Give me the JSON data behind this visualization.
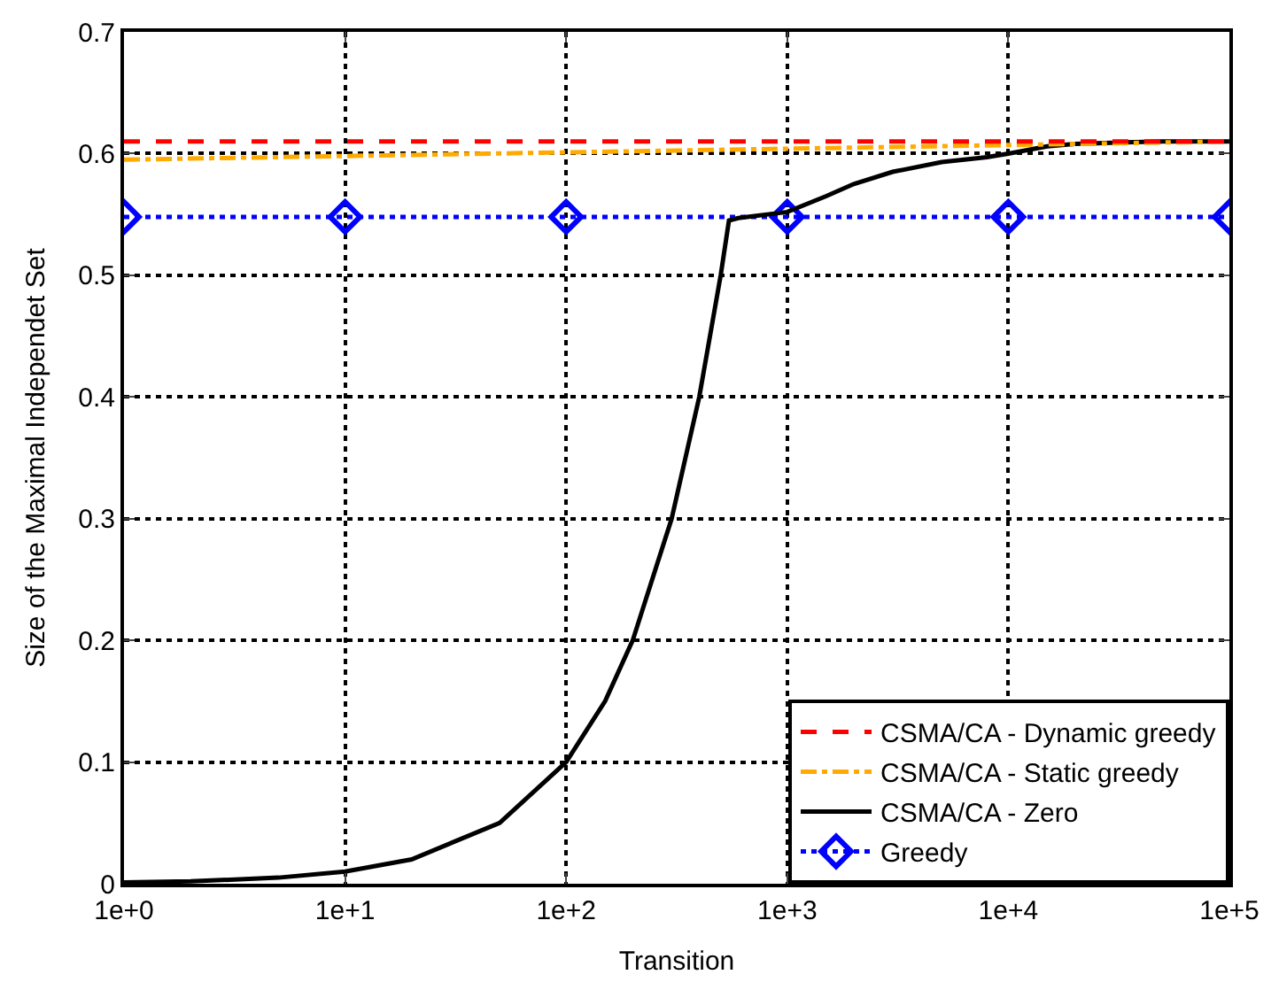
{
  "chart_data": {
    "type": "line",
    "xlabel": "Transition",
    "ylabel": "Size of the Maximal Independet Set",
    "log": "x",
    "grid": true,
    "legend": "bottom right",
    "xlim": [
      1,
      100000
    ],
    "xticks": [
      {
        "value": 1,
        "label": "1e+0"
      },
      {
        "value": 10,
        "label": "1e+1"
      },
      {
        "value": 100,
        "label": "1e+2"
      },
      {
        "value": 1000,
        "label": "1e+3"
      },
      {
        "value": 10000,
        "label": "1e+4"
      },
      {
        "value": 100000,
        "label": "1e+5"
      }
    ],
    "ylim": [
      0,
      0.7
    ],
    "yticks": [
      0,
      0.1,
      0.2,
      0.3,
      0.4,
      0.5,
      0.6,
      0.7
    ],
    "series": [
      {
        "name": "CSMA/CA - Dynamic greedy",
        "color": "#ff0000",
        "line_style": "dashed",
        "marker": "none",
        "x": [
          1,
          10,
          100,
          1000,
          10000,
          100000
        ],
        "values": [
          0.61,
          0.61,
          0.61,
          0.61,
          0.61,
          0.61
        ]
      },
      {
        "name": "CSMA/CA - Static greedy",
        "color": "#ffaa00",
        "line_style": "dashdot",
        "marker": "none",
        "x": [
          1,
          10,
          100,
          1000,
          10000,
          100000
        ],
        "values": [
          0.595,
          0.598,
          0.601,
          0.604,
          0.607,
          0.61
        ]
      },
      {
        "name": "CSMA/CA - Zero",
        "color": "#000000",
        "line_style": "solid",
        "marker": "none",
        "x": [
          1,
          2,
          5,
          10,
          20,
          50,
          100,
          150,
          200,
          300,
          400,
          500,
          545,
          600,
          1000,
          1500,
          2000,
          3000,
          5000,
          8000,
          10000,
          15000,
          20000,
          50000,
          100000
        ],
        "values": [
          0.001,
          0.002,
          0.005,
          0.01,
          0.02,
          0.05,
          0.1,
          0.15,
          0.2,
          0.3,
          0.4,
          0.5,
          0.545,
          0.547,
          0.552,
          0.565,
          0.575,
          0.585,
          0.593,
          0.597,
          0.6,
          0.606,
          0.608,
          0.61,
          0.61
        ]
      },
      {
        "name": "Greedy",
        "color": "#0000ff",
        "line_style": "dotted",
        "marker": "diamond",
        "x": [
          1,
          10,
          100,
          1000,
          10000,
          100000
        ],
        "values": [
          0.548,
          0.548,
          0.548,
          0.548,
          0.548,
          0.548
        ]
      }
    ]
  }
}
